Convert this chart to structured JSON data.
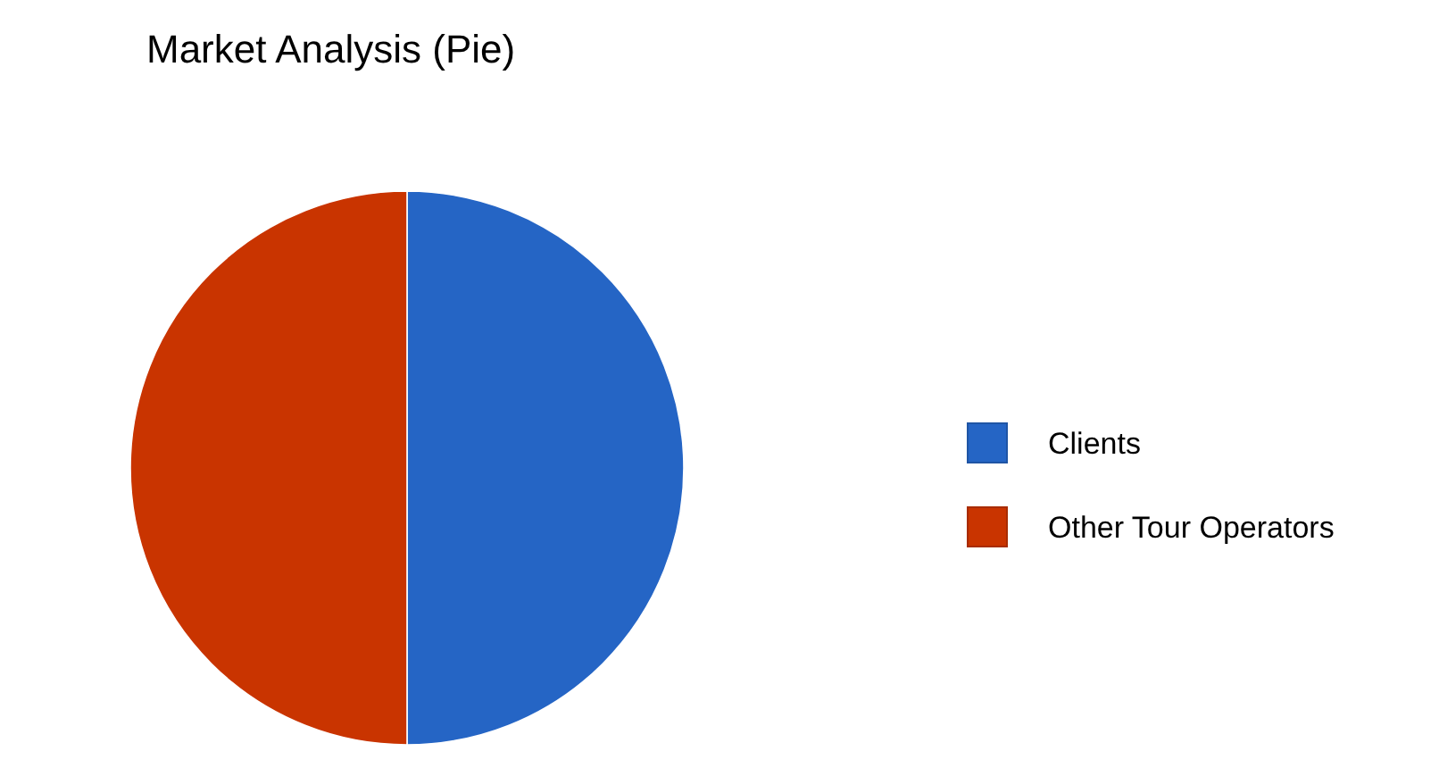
{
  "chart_data": {
    "type": "pie",
    "title": "Market Analysis (Pie)",
    "categories": [
      "Clients",
      "Other Tour Operators"
    ],
    "values": [
      50,
      50
    ],
    "colors": [
      "#2565c5",
      "#c93400"
    ],
    "legend": "right"
  }
}
